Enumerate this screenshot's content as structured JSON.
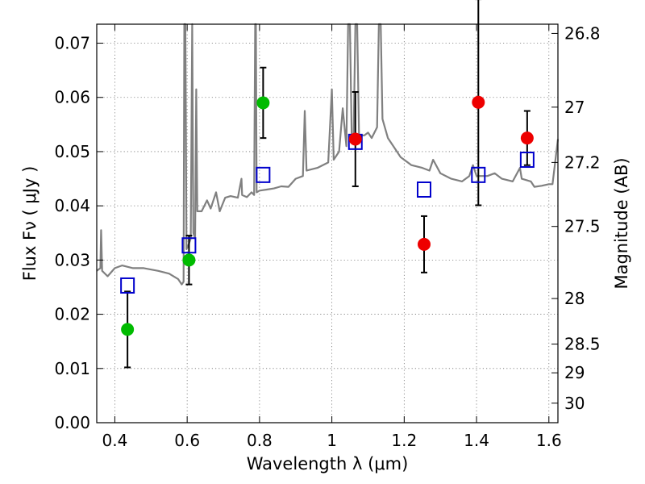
{
  "chart_data": {
    "type": "scatter",
    "xlabel": "Wavelength  λ (μm)",
    "ylabel": "Flux  Fν  ( μJy )",
    "y2label": "Magnitude (AB)",
    "xlim": [
      0.35,
      1.625
    ],
    "ylim": [
      0.0,
      0.0735
    ],
    "x_ticks": [
      0.4,
      0.6,
      0.8,
      1.0,
      1.2,
      1.4,
      1.6
    ],
    "x_tick_labels": [
      "0.4",
      "0.6",
      "0.8",
      "1",
      "1.2",
      "1.4",
      "1.6"
    ],
    "y_ticks": [
      0.0,
      0.01,
      0.02,
      0.03,
      0.04,
      0.05,
      0.06,
      0.07
    ],
    "y_tick_labels": [
      "0.00",
      "0.01",
      "0.02",
      "0.03",
      "0.04",
      "0.05",
      "0.06",
      "0.07"
    ],
    "y2_ticks": [
      {
        "flux": 0.0718,
        "label": "26.8"
      },
      {
        "flux": 0.0582,
        "label": "27"
      },
      {
        "flux": 0.048,
        "label": "27.2"
      },
      {
        "flux": 0.0362,
        "label": "27.5"
      },
      {
        "flux": 0.0229,
        "label": "28"
      },
      {
        "flux": 0.0145,
        "label": "28.5"
      },
      {
        "flux": 0.0092,
        "label": "29"
      },
      {
        "flux": 0.0036,
        "label": "30"
      }
    ],
    "grid": true,
    "series": [
      {
        "kind": "spectrum",
        "color": "#808080",
        "points": [
          [
            0.35,
            0.028
          ],
          [
            0.36,
            0.0285
          ],
          [
            0.362,
            0.0355
          ],
          [
            0.365,
            0.028
          ],
          [
            0.38,
            0.027
          ],
          [
            0.4,
            0.0285
          ],
          [
            0.42,
            0.029
          ],
          [
            0.45,
            0.0285
          ],
          [
            0.48,
            0.0285
          ],
          [
            0.52,
            0.028
          ],
          [
            0.55,
            0.0275
          ],
          [
            0.575,
            0.0265
          ],
          [
            0.585,
            0.0255
          ],
          [
            0.59,
            0.026
          ],
          [
            0.592,
            0.0735
          ],
          [
            0.595,
            0.0735
          ],
          [
            0.598,
            0.032
          ],
          [
            0.605,
            0.033
          ],
          [
            0.61,
            0.034
          ],
          [
            0.614,
            0.0735
          ],
          [
            0.617,
            0.035
          ],
          [
            0.622,
            0.034
          ],
          [
            0.625,
            0.0615
          ],
          [
            0.628,
            0.039
          ],
          [
            0.64,
            0.039
          ],
          [
            0.655,
            0.041
          ],
          [
            0.665,
            0.0395
          ],
          [
            0.68,
            0.0425
          ],
          [
            0.69,
            0.039
          ],
          [
            0.705,
            0.0415
          ],
          [
            0.72,
            0.0418
          ],
          [
            0.74,
            0.0415
          ],
          [
            0.75,
            0.045
          ],
          [
            0.752,
            0.042
          ],
          [
            0.765,
            0.0416
          ],
          [
            0.778,
            0.0425
          ],
          [
            0.785,
            0.042
          ],
          [
            0.788,
            0.0735
          ],
          [
            0.79,
            0.0735
          ],
          [
            0.792,
            0.0425
          ],
          [
            0.8,
            0.0428
          ],
          [
            0.82,
            0.043
          ],
          [
            0.84,
            0.0432
          ],
          [
            0.86,
            0.0436
          ],
          [
            0.88,
            0.0435
          ],
          [
            0.9,
            0.045
          ],
          [
            0.92,
            0.0455
          ],
          [
            0.925,
            0.0575
          ],
          [
            0.93,
            0.0465
          ],
          [
            0.96,
            0.047
          ],
          [
            0.99,
            0.048
          ],
          [
            1.0,
            0.0615
          ],
          [
            1.005,
            0.0485
          ],
          [
            1.02,
            0.05
          ],
          [
            1.03,
            0.058
          ],
          [
            1.04,
            0.051
          ],
          [
            1.045,
            0.0735
          ],
          [
            1.05,
            0.0735
          ],
          [
            1.055,
            0.052
          ],
          [
            1.06,
            0.052
          ],
          [
            1.065,
            0.0735
          ],
          [
            1.07,
            0.0735
          ],
          [
            1.075,
            0.053
          ],
          [
            1.09,
            0.053
          ],
          [
            1.1,
            0.0535
          ],
          [
            1.11,
            0.0525
          ],
          [
            1.125,
            0.0545
          ],
          [
            1.13,
            0.0735
          ],
          [
            1.135,
            0.0735
          ],
          [
            1.14,
            0.056
          ],
          [
            1.155,
            0.0525
          ],
          [
            1.17,
            0.051
          ],
          [
            1.19,
            0.049
          ],
          [
            1.22,
            0.0475
          ],
          [
            1.25,
            0.047
          ],
          [
            1.27,
            0.0465
          ],
          [
            1.28,
            0.0485
          ],
          [
            1.3,
            0.046
          ],
          [
            1.33,
            0.045
          ],
          [
            1.36,
            0.0445
          ],
          [
            1.38,
            0.0455
          ],
          [
            1.39,
            0.0475
          ],
          [
            1.4,
            0.0455
          ],
          [
            1.43,
            0.0455
          ],
          [
            1.45,
            0.046
          ],
          [
            1.47,
            0.045
          ],
          [
            1.5,
            0.0445
          ],
          [
            1.52,
            0.047
          ],
          [
            1.525,
            0.045
          ],
          [
            1.55,
            0.0445
          ],
          [
            1.56,
            0.0435
          ],
          [
            1.58,
            0.0437
          ],
          [
            1.6,
            0.044
          ],
          [
            1.61,
            0.044
          ],
          [
            1.625,
            0.0523
          ]
        ]
      },
      {
        "kind": "model-boxes",
        "color": "#0000cc",
        "points": [
          [
            0.435,
            0.0253
          ],
          [
            0.605,
            0.0327
          ],
          [
            0.81,
            0.0457
          ],
          [
            1.065,
            0.0518
          ],
          [
            1.255,
            0.043
          ],
          [
            1.405,
            0.0457
          ],
          [
            1.54,
            0.0485
          ]
        ]
      },
      {
        "kind": "observed",
        "color": "#00bb00",
        "points": [
          {
            "x": 0.435,
            "y": 0.0172,
            "err": 0.007
          },
          {
            "x": 0.605,
            "y": 0.03,
            "err": 0.0045
          },
          {
            "x": 0.81,
            "y": 0.059,
            "err": 0.0065
          }
        ]
      },
      {
        "kind": "observed",
        "color": "#ee0000",
        "points": [
          {
            "x": 1.065,
            "y": 0.0523,
            "err": 0.0087
          },
          {
            "x": 1.255,
            "y": 0.0329,
            "err": 0.0052
          },
          {
            "x": 1.405,
            "y": 0.0591,
            "err": 0.019
          },
          {
            "x": 1.54,
            "y": 0.0525,
            "err": 0.005
          }
        ]
      }
    ]
  }
}
